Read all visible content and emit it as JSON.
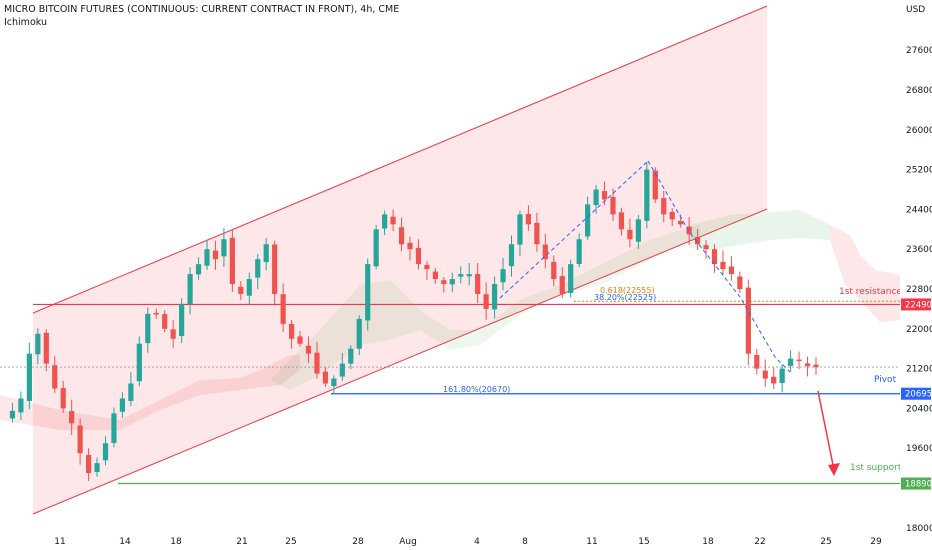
{
  "header": {
    "title": "MICRO BITCOIN FUTURES (CONTINUOUS: CURRENT CONTRACT IN FRONT), 4h, CME",
    "indicator": "Ichimoku",
    "currency": "USD"
  },
  "chart_data": {
    "type": "candlestick",
    "title": "MICRO BITCOIN FUTURES (CONTINUOUS: CURRENT CONTRACT IN FRONT), 4h, CME",
    "ylim": [
      17800,
      28400
    ],
    "y_ticks": [
      18000,
      19600,
      20400,
      21200,
      22000,
      22800,
      23600,
      24400,
      25200,
      26000,
      26800,
      27600
    ],
    "x_ticks": [
      "11",
      "14",
      "18",
      "21",
      "25",
      "28",
      "Aug",
      "4",
      "8",
      "11",
      "15",
      "18",
      "22",
      "25",
      "29"
    ],
    "levels": [
      {
        "name": "1st resistance",
        "value": 22490,
        "label": "22490",
        "color": "#f23645"
      },
      {
        "name": "Pivot",
        "value": 20695,
        "label": "20695",
        "color": "#2962ff"
      },
      {
        "name": "1st support",
        "value": 18890,
        "label": "18890",
        "color": "#4caf50"
      }
    ],
    "fib_labels": [
      {
        "text": "0.618(22555)",
        "value": 22555,
        "color": "#f57c00"
      },
      {
        "text": "38.20%(22525)",
        "value": 22525,
        "color": "#2962ff"
      },
      {
        "text": "161.80%(20670)",
        "value": 20670,
        "color": "#2962ff"
      }
    ],
    "current_price": 21230,
    "price_path": [
      20200,
      20350,
      20600,
      21500,
      21900,
      21300,
      20800,
      20400,
      20100,
      19500,
      19100,
      19300,
      19700,
      20300,
      20600,
      20900,
      21700,
      22300,
      22300,
      22000,
      21800,
      22500,
      23100,
      23300,
      23600,
      23400,
      23800,
      22900,
      22700,
      23000,
      23400,
      23700,
      22700,
      22100,
      21800,
      21700,
      21500,
      21100,
      20900,
      21000,
      21300,
      21600,
      22200,
      23300,
      24000,
      24300,
      24100,
      23700,
      23600,
      23300,
      23200,
      23000,
      22900,
      23000,
      23100,
      23100,
      22700,
      22400,
      22900,
      23200,
      23700,
      24300,
      24100,
      23700,
      23400,
      23000,
      22700,
      23300,
      23800,
      24500,
      24800,
      24600,
      24300,
      24000,
      23800,
      24200,
      25200,
      24600,
      24300,
      24200,
      24100,
      23900,
      23700,
      23600,
      23300,
      23200,
      23100,
      22800,
      21500,
      21200,
      21000,
      20900,
      21200,
      21400,
      21350,
      21250,
      21230
    ]
  },
  "annotations": {
    "resistance_label": "1st resistance",
    "pivot_label": "Pivot",
    "support_label": "1st support"
  }
}
